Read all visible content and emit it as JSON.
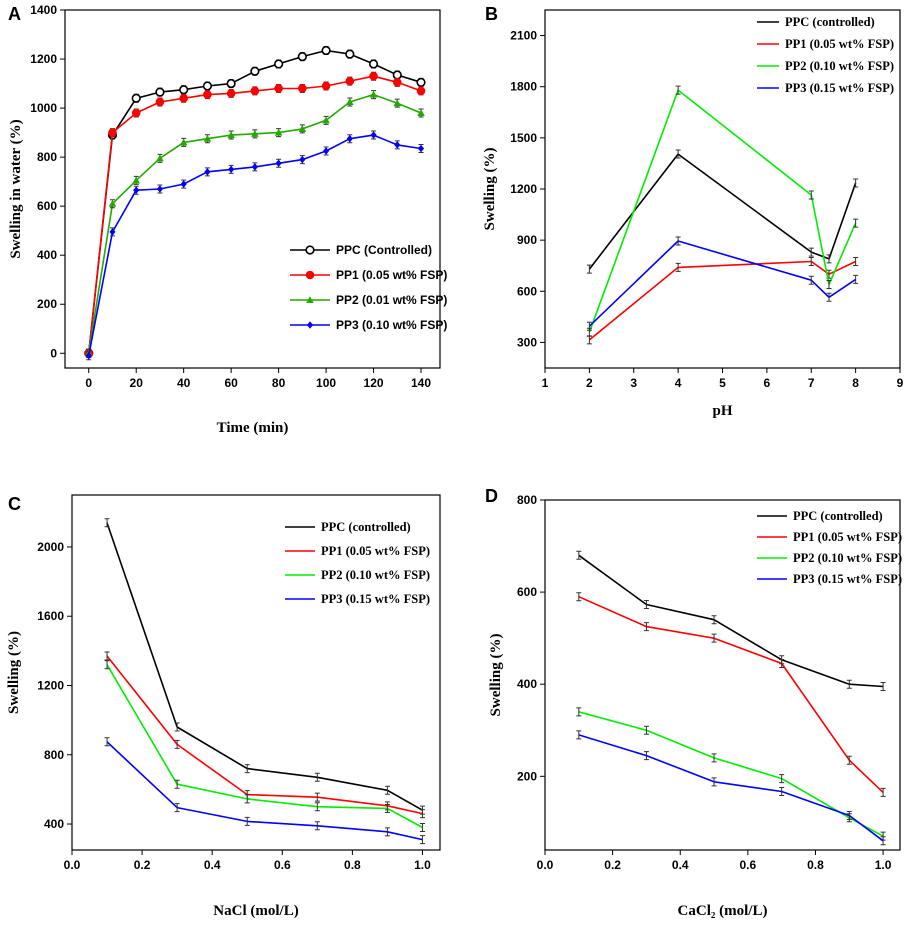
{
  "chart_data": [
    {
      "panel": "A",
      "type": "line",
      "title": "",
      "xlabel": "Time (min)",
      "ylabel": "Swelling in water (%)",
      "xlim": [
        -10,
        148
      ],
      "ylim": [
        -60,
        1400
      ],
      "xticks": [
        0,
        20,
        40,
        60,
        80,
        100,
        120,
        140
      ],
      "yticks": [
        0,
        200,
        400,
        600,
        800,
        1000,
        1200,
        1400
      ],
      "legend_position": "center-right",
      "marker_style": true,
      "series": [
        {
          "name": "PPC (Controlled)",
          "color": "#000000",
          "marker": "open-circle",
          "x": [
            0,
            10,
            20,
            30,
            40,
            50,
            60,
            70,
            80,
            90,
            100,
            110,
            120,
            130,
            140
          ],
          "y": [
            0,
            890,
            1040,
            1065,
            1075,
            1090,
            1100,
            1150,
            1180,
            1210,
            1235,
            1220,
            1180,
            1135,
            1105
          ]
        },
        {
          "name": "PP1 (0.05 wt% FSP)",
          "color": "#ff0000",
          "marker": "circle",
          "x": [
            0,
            10,
            20,
            30,
            40,
            50,
            60,
            70,
            80,
            90,
            100,
            110,
            120,
            130,
            140
          ],
          "y": [
            0,
            900,
            980,
            1025,
            1040,
            1055,
            1060,
            1070,
            1080,
            1080,
            1090,
            1110,
            1130,
            1105,
            1070
          ]
        },
        {
          "name": "PP2 (0.01 wt% FSP)",
          "color": "#22aa00",
          "marker": "triangle",
          "x": [
            0,
            10,
            20,
            30,
            40,
            50,
            60,
            70,
            80,
            90,
            100,
            110,
            120,
            130,
            140
          ],
          "y": [
            0,
            610,
            705,
            795,
            860,
            875,
            890,
            895,
            900,
            915,
            950,
            1025,
            1055,
            1020,
            980
          ]
        },
        {
          "name": "PP3 (0.10 wt% FSP)",
          "color": "#0000ff",
          "marker": "diamond",
          "x": [
            0,
            10,
            20,
            30,
            40,
            50,
            60,
            70,
            80,
            90,
            100,
            110,
            120,
            130,
            140
          ],
          "y": [
            -10,
            495,
            665,
            670,
            690,
            740,
            750,
            760,
            775,
            790,
            825,
            875,
            890,
            850,
            835
          ]
        }
      ]
    },
    {
      "panel": "B",
      "type": "line",
      "title": "",
      "xlabel": "pH",
      "ylabel": "Swelling (%)",
      "xlim": [
        1,
        9
      ],
      "ylim": [
        150,
        2250
      ],
      "xticks": [
        1,
        2,
        3,
        4,
        5,
        6,
        7,
        8,
        9
      ],
      "yticks": [
        300,
        600,
        900,
        1200,
        1500,
        1800,
        2100
      ],
      "legend_position": "top-right",
      "marker_style": false,
      "series": [
        {
          "name": "PPC (controlled)",
          "color": "#000000",
          "x": [
            2,
            4,
            7,
            7.4,
            8
          ],
          "y": [
            730,
            1405,
            830,
            790,
            1235
          ]
        },
        {
          "name": "PP1 (0.05 wt% FSP)",
          "color": "#ff0000",
          "x": [
            2,
            4,
            7,
            7.4,
            8
          ],
          "y": [
            315,
            740,
            775,
            700,
            775
          ]
        },
        {
          "name": "PP2 (0.10 wt% FSP)",
          "color": "#00ee00",
          "x": [
            2,
            4,
            7,
            7.4,
            8
          ],
          "y": [
            360,
            1780,
            1165,
            640,
            1000
          ]
        },
        {
          "name": "PP3 (0.15 wt% FSP)",
          "color": "#0000ff",
          "x": [
            2,
            4,
            7,
            7.4,
            8
          ],
          "y": [
            395,
            895,
            665,
            565,
            670
          ]
        }
      ]
    },
    {
      "panel": "C",
      "type": "line",
      "title": "",
      "xlabel": "NaCl (mol/L)",
      "ylabel": "Swelling (%)",
      "xlim": [
        0,
        1.05
      ],
      "ylim": [
        250,
        2300
      ],
      "xticks": [
        0.0,
        0.2,
        0.4,
        0.6,
        0.8,
        1.0
      ],
      "yticks": [
        400,
        800,
        1200,
        1600,
        2000
      ],
      "legend_position": "top-right",
      "marker_style": false,
      "series": [
        {
          "name": "PPC (controlled)",
          "color": "#000000",
          "x": [
            0.1,
            0.3,
            0.5,
            0.7,
            0.9,
            1.0
          ],
          "y": [
            2140,
            960,
            720,
            670,
            595,
            480
          ]
        },
        {
          "name": "PP1 (0.05 wt% FSP)",
          "color": "#ff0000",
          "x": [
            0.1,
            0.3,
            0.5,
            0.7,
            0.9,
            1.0
          ],
          "y": [
            1370,
            860,
            570,
            555,
            505,
            460
          ]
        },
        {
          "name": "PP2 (0.10 wt% FSP)",
          "color": "#00ee00",
          "x": [
            0.1,
            0.3,
            0.5,
            0.7,
            0.9,
            1.0
          ],
          "y": [
            1320,
            630,
            545,
            500,
            490,
            380
          ]
        },
        {
          "name": "PP3 (0.15 wt% FSP)",
          "color": "#0000ff",
          "x": [
            0.1,
            0.3,
            0.5,
            0.7,
            0.9,
            1.0
          ],
          "y": [
            875,
            495,
            415,
            390,
            355,
            310
          ]
        }
      ]
    },
    {
      "panel": "D",
      "type": "line",
      "title": "",
      "xlabel": "CaCl₂ (mol/L)",
      "ylabel": "Swelling (%)",
      "xlim": [
        0,
        1.05
      ],
      "ylim": [
        40,
        800
      ],
      "xticks": [
        0.0,
        0.2,
        0.4,
        0.6,
        0.8,
        1.0
      ],
      "yticks": [
        200,
        400,
        600,
        800
      ],
      "legend_position": "top-right",
      "marker_style": false,
      "series": [
        {
          "name": "PPC (controlled)",
          "color": "#000000",
          "x": [
            0.1,
            0.3,
            0.5,
            0.7,
            0.9,
            1.0
          ],
          "y": [
            680,
            573,
            540,
            453,
            400,
            395
          ]
        },
        {
          "name": "PP1 (0.05 wt% FSP)",
          "color": "#ff0000",
          "x": [
            0.1,
            0.3,
            0.5,
            0.7,
            0.9,
            1.0
          ],
          "y": [
            590,
            525,
            500,
            445,
            235,
            165
          ]
        },
        {
          "name": "PP2 (0.10 wt% FSP)",
          "color": "#00ee00",
          "x": [
            0.1,
            0.3,
            0.5,
            0.7,
            0.9,
            1.0
          ],
          "y": [
            340,
            300,
            240,
            195,
            110,
            70
          ]
        },
        {
          "name": "PP3 (0.15 wt% FSP)",
          "color": "#0000ff",
          "x": [
            0.1,
            0.3,
            0.5,
            0.7,
            0.9,
            1.0
          ],
          "y": [
            290,
            245,
            188,
            167,
            115,
            60
          ]
        }
      ]
    }
  ]
}
